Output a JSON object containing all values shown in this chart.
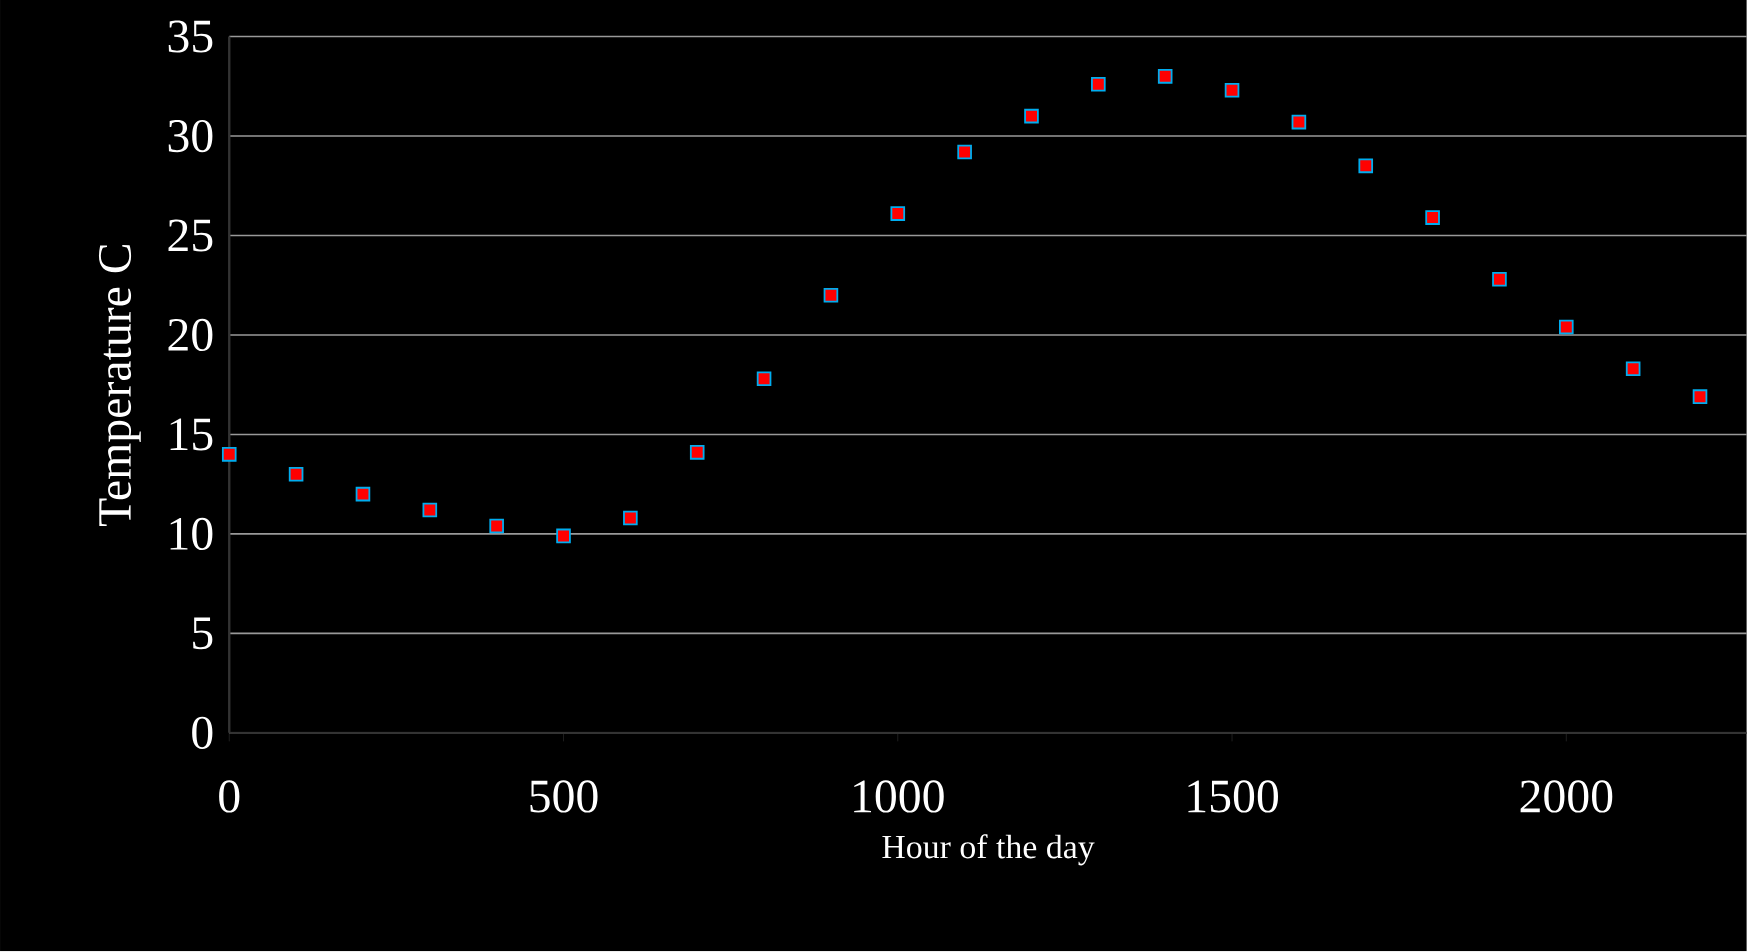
{
  "chart_data": {
    "type": "scatter",
    "xlabel": "Hour of the day",
    "ylabel": "Temperature C",
    "x": [
      0,
      100,
      200,
      300,
      400,
      500,
      600,
      700,
      800,
      900,
      1000,
      1100,
      1200,
      1300,
      1400,
      1500,
      1600,
      1700,
      1800,
      1900,
      2000,
      2100,
      2200
    ],
    "values": [
      14.0,
      13.0,
      12.0,
      11.2,
      10.4,
      9.9,
      10.8,
      14.1,
      17.8,
      22.0,
      26.1,
      29.2,
      31.0,
      32.6,
      33.0,
      32.3,
      30.7,
      28.5,
      25.9,
      22.8,
      20.4,
      18.3,
      16.9
    ],
    "color": "#ff0000",
    "xlim": [
      0,
      2270
    ],
    "ylim": [
      0,
      35
    ],
    "xticks": [
      0,
      500,
      1000,
      1500,
      2000
    ],
    "yticks": [
      0,
      5,
      10,
      15,
      20,
      25,
      30,
      35
    ],
    "grid": "y",
    "marker": "square"
  }
}
